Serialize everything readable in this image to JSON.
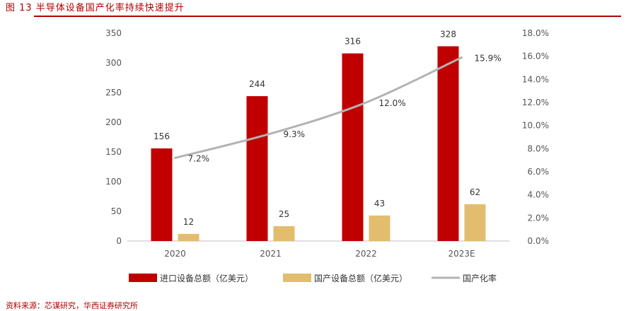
{
  "figure": {
    "title": "图 13   半导体设备国产化率持续快速提升",
    "source": "资料来源：芯谋研究，华西证券研究所"
  },
  "colors": {
    "import": "#c00000",
    "domestic": "#e3bd6e",
    "rate": "#b3b3b3",
    "accent": "#b30000"
  },
  "chart_data": {
    "type": "bar",
    "categories": [
      "2020",
      "2021",
      "2022",
      "2023E"
    ],
    "series": [
      {
        "name": "进口设备总额（亿美元）",
        "type": "bar",
        "axis": "left",
        "values": [
          156,
          244,
          316,
          328
        ]
      },
      {
        "name": "国产设备总额（亿美元）",
        "type": "bar",
        "axis": "left",
        "values": [
          12,
          25,
          43,
          62
        ]
      },
      {
        "name": "国产化率",
        "type": "line",
        "axis": "right",
        "values": [
          7.2,
          9.3,
          12.0,
          15.9
        ],
        "labels": [
          "7.2%",
          "9.3%",
          "12.0%",
          "15.9%"
        ]
      }
    ],
    "ylim": [
      0,
      350
    ],
    "y_ticks": [
      "0",
      "50",
      "100",
      "150",
      "200",
      "250",
      "300",
      "350"
    ],
    "y2lim": [
      0,
      18
    ],
    "y2_ticks": [
      "0.0%",
      "2.0%",
      "4.0%",
      "6.0%",
      "8.0%",
      "10.0%",
      "12.0%",
      "14.0%",
      "16.0%",
      "18.0%"
    ],
    "legend": "bottom",
    "grid": false
  }
}
